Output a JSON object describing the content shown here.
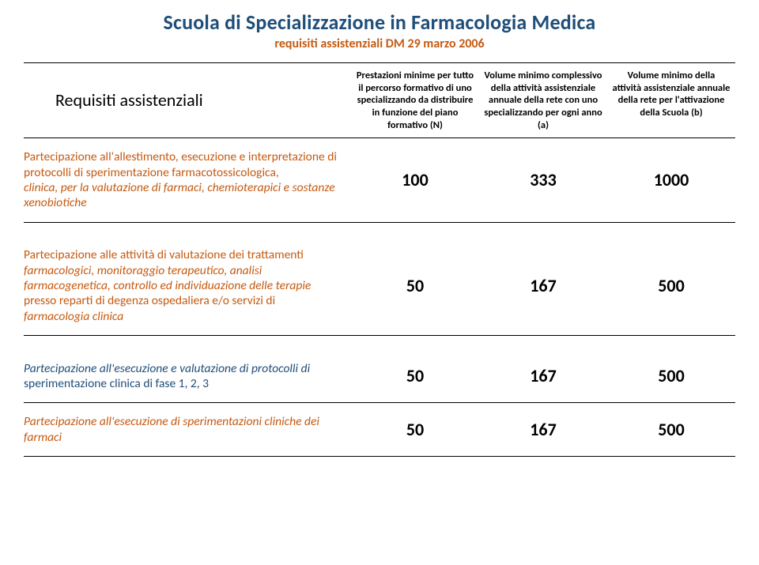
{
  "colors": {
    "title": "#1f4e79",
    "subtitle": "#c55a11",
    "border": "#000000",
    "row1_text": "#c55a11",
    "row2_text": "#c55a11",
    "row3_text": "#1f4e79",
    "row4_text": "#c55a11",
    "header_text": "#000000"
  },
  "title": "Scuola di Specializzazione in Farmacologia Medica",
  "subtitle": "requisiti assistenziali DM 29 marzo 2006",
  "header": {
    "req": "Requisiti assistenziali",
    "col1": "Prestazioni minime per tutto il percorso formativo di uno specializzando da distribuire in funzione del piano formativo (N)",
    "col2": "Volume minimo complessivo della attività assistenziale annuale della rete con uno specializzando per ogni anno (a)",
    "col3": "Volume minimo della attività assistenziale annuale della rete per l'attivazione della Scuola (b)"
  },
  "rows": [
    {
      "desc_plain": "Partecipazione all'allestimento, esecuzione e interpretazione di protocolli di sperimentazione farmacotossicologica,",
      "desc_italic": "clinica, per la valutazione di farmaci, chemioterapici e sostanze xenobiotiche",
      "v1": "100",
      "v2": "333",
      "v3": "1000"
    },
    {
      "desc_plain": "Partecipazione alle attività di valutazione dei trattamenti",
      "desc_italic": "farmacologici, monitoraggio terapeutico, analisi farmacogenetica, controllo ed individuazione delle terapie",
      "desc_plain2": "presso reparti di degenza ospedaliera e/o servizi di",
      "desc_italic2": "farmacologia clinica",
      "v1": "50",
      "v2": "167",
      "v3": "500"
    },
    {
      "desc_italic": "Partecipazione all'esecuzione e valutazione di protocolli di",
      "desc_plain2": "sperimentazione clinica di fase 1, 2, 3",
      "v1": "50",
      "v2": "167",
      "v3": "500"
    },
    {
      "desc_italic": "Partecipazione all'esecuzione di sperimentazioni cliniche dei farmaci",
      "v1": "50",
      "v2": "167",
      "v3": "500"
    }
  ]
}
